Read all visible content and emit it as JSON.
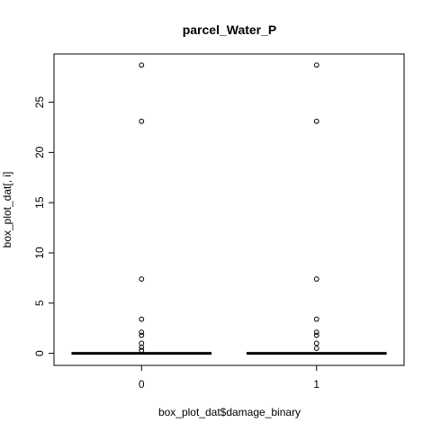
{
  "chart_data": {
    "type": "box",
    "title": "parcel_Water_P",
    "xlabel": "box_plot_dat$damage_binary",
    "ylabel": "box_plot_dat[, i]",
    "categories": [
      "0",
      "1"
    ],
    "ylim": [
      -1.2,
      29.8
    ],
    "yticks": [
      0,
      5,
      10,
      15,
      20,
      25
    ],
    "grid": false,
    "boxes": [
      {
        "category": "0",
        "min": 0,
        "q1": 0,
        "median": 0,
        "q3": 0,
        "max": 0,
        "outliers": [
          28.7,
          23.1,
          7.4,
          3.4,
          2.1,
          1.8,
          1.0,
          0.6,
          0.3
        ]
      },
      {
        "category": "1",
        "min": 0,
        "q1": 0,
        "median": 0,
        "q3": 0,
        "max": 0,
        "outliers": [
          28.7,
          23.1,
          7.4,
          3.4,
          2.1,
          1.8,
          1.0,
          0.5
        ]
      }
    ]
  }
}
